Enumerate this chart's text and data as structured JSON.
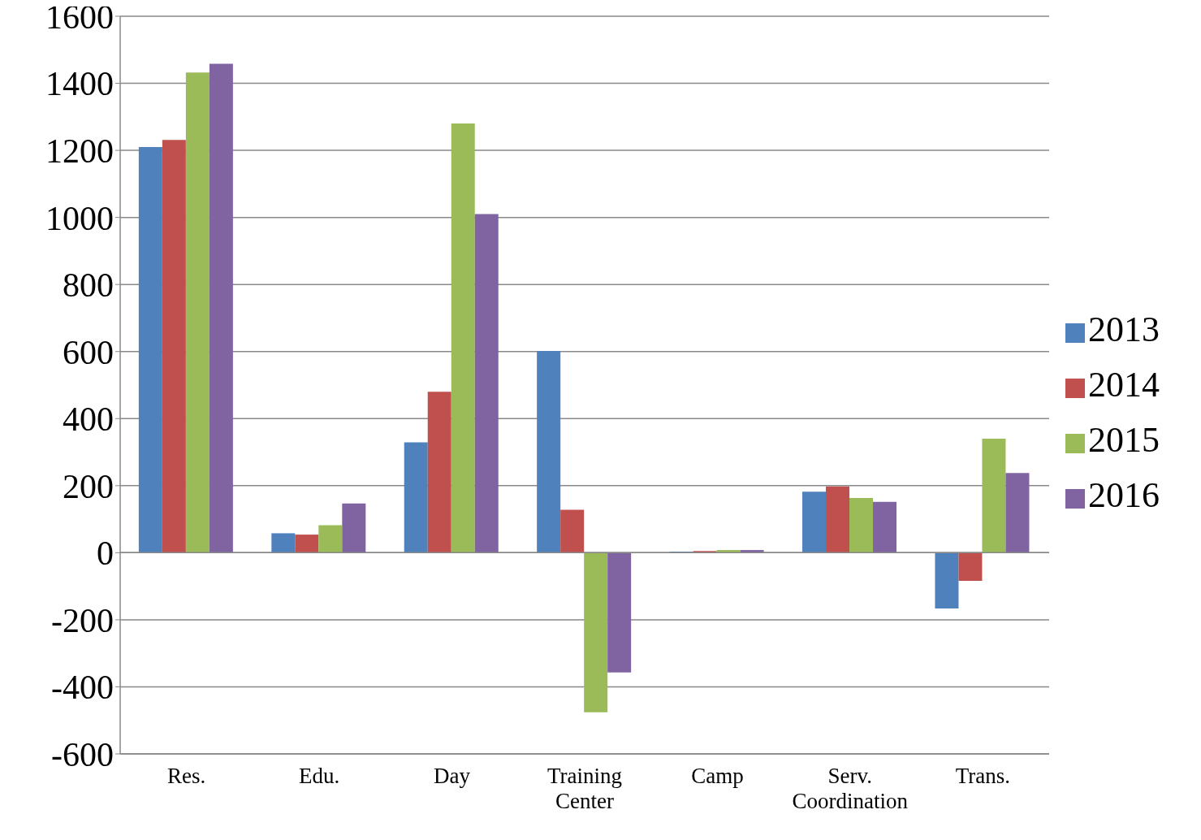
{
  "chart_data": {
    "type": "bar",
    "categories": [
      "Res.",
      "Edu.",
      "Day",
      "Training Center",
      "Camp",
      "Serv. Coordination",
      "Trans."
    ],
    "series": [
      {
        "name": "2013",
        "color": "#4f81bd",
        "values": [
          1210,
          58,
          329,
          602,
          3,
          182,
          -166
        ]
      },
      {
        "name": "2014",
        "color": "#c0504d",
        "values": [
          1231,
          54,
          480,
          128,
          5,
          198,
          -84
        ]
      },
      {
        "name": "2015",
        "color": "#9bbb59",
        "values": [
          1432,
          82,
          1280,
          -476,
          8,
          163,
          340
        ]
      },
      {
        "name": "2016",
        "color": "#8064a2",
        "values": [
          1458,
          147,
          1010,
          -357,
          8,
          152,
          238
        ]
      }
    ],
    "ylim": [
      -600,
      1600
    ],
    "yticks": [
      -600,
      -400,
      -200,
      0,
      200,
      400,
      600,
      800,
      1000,
      1200,
      1400,
      1600
    ],
    "grid": "y",
    "legend": "right"
  }
}
